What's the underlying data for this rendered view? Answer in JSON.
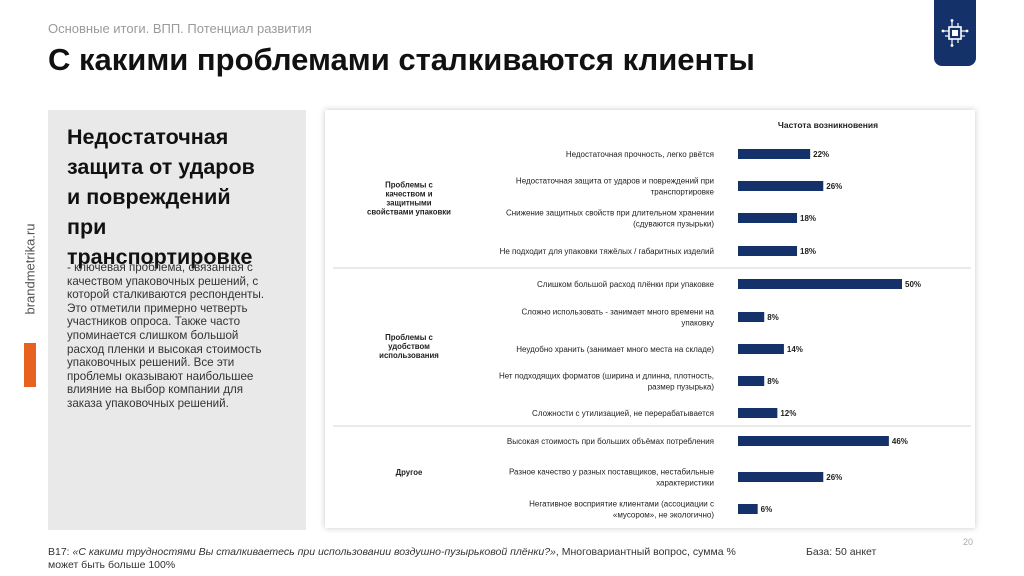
{
  "header": {
    "breadcrumb": "Основные итоги. ВПП. Потенциал развития",
    "title": "С какими проблемами сталкиваются клиенты"
  },
  "sidebar": {
    "brand": "brandmetrika.ru"
  },
  "insight": {
    "heading_lines": [
      "Недостаточная",
      "защита от ударов",
      "и повреждений",
      "при",
      "транспортировке"
    ],
    "body_lines": [
      "- ключевая проблема, связанная с",
      "качеством упаковочных решений, с",
      "которой сталкиваются респонденты.",
      "Это отметили примерно четверть",
      "участников опроса. Также часто",
      "упоминается слишком большой",
      "расход пленки и высокая стоимость",
      "упаковочных решений. Все эти",
      "проблемы оказывают наибольшее",
      "влияние на выбор компании для",
      "заказа упаковочных решений."
    ]
  },
  "chart_data": {
    "type": "bar",
    "orientation": "horizontal",
    "column_header": "Частота возникновения",
    "unit": "%",
    "xlim": [
      0,
      50
    ],
    "groups": [
      {
        "label_lines": [
          "Проблемы с",
          "качеством и",
          "защитными",
          "свойствами упаковки"
        ],
        "items": [
          {
            "label_lines": [
              "Недостаточная прочность, легко рвётся"
            ],
            "value": 22
          },
          {
            "label_lines": [
              "Недостаточная защита от ударов и повреждений при",
              "транспортировке"
            ],
            "value": 26
          },
          {
            "label_lines": [
              "Снижение защитных свойств при длительном хранении",
              "(сдуваются пузырьки)"
            ],
            "value": 18
          },
          {
            "label_lines": [
              "Не подходит для упаковки тяжёлых / габаритных изделий"
            ],
            "value": 18
          }
        ]
      },
      {
        "label_lines": [
          "Проблемы с",
          "удобством",
          "использования"
        ],
        "items": [
          {
            "label_lines": [
              "Слишком большой расход плёнки при упаковке"
            ],
            "value": 50
          },
          {
            "label_lines": [
              "Сложно использовать - занимает много времени на",
              "упаковку"
            ],
            "value": 8
          },
          {
            "label_lines": [
              "Неудобно хранить (занимает много места на складе)"
            ],
            "value": 14
          },
          {
            "label_lines": [
              "Нет подходящих форматов (ширина и длинна, плотность,",
              "размер пузырька)"
            ],
            "value": 8
          },
          {
            "label_lines": [
              "Сложности с утилизацией, не перерабатывается"
            ],
            "value": 12
          }
        ]
      },
      {
        "label_lines": [
          "Другое"
        ],
        "items": [
          {
            "label_lines": [
              "Высокая стоимость при больших объёмах потребления"
            ],
            "value": 46
          },
          {
            "label_lines": [
              "Разное качество у разных поставщиков, нестабильные",
              "характеристики"
            ],
            "value": 26
          },
          {
            "label_lines": [
              "Негативное восприятие клиентами (ассоциации с",
              "«мусором», не экологично)"
            ],
            "value": 6
          }
        ]
      }
    ],
    "bar_color": "#14316a"
  },
  "footer": {
    "question_code": "B17: ",
    "question_text": "«С какими трудностями Вы сталкиваетесь при использовании воздушно-пузырьковой плёнки?»",
    "question_note": ", Многовариантный вопрос, сумма % может быть больше 100%",
    "base": "База: 50 анкет",
    "page_number": "20"
  }
}
